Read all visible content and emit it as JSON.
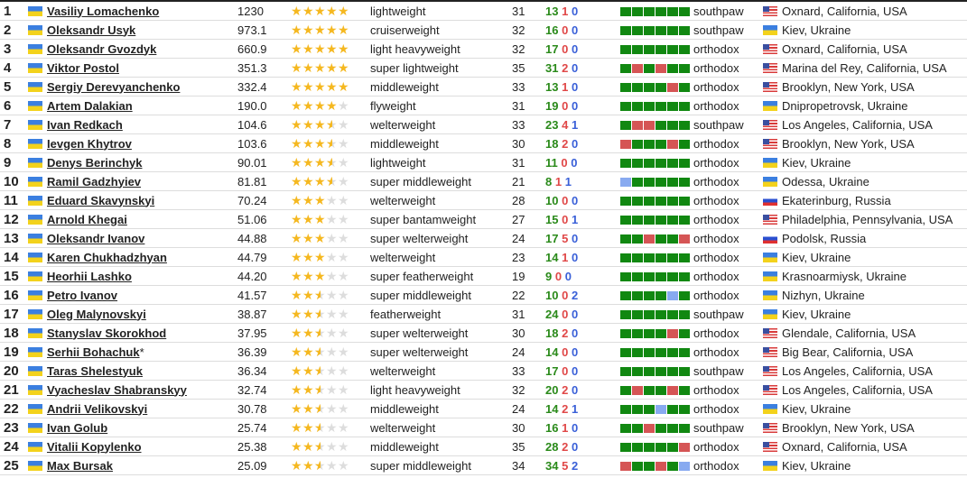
{
  "colors": {
    "win": "#118811",
    "loss": "#d55555",
    "draw": "#88aaf0",
    "star": "#f5b820"
  },
  "rows": [
    {
      "rank": "1",
      "flag": "ua",
      "name": "Vasiliy Lomachenko",
      "points": "1230",
      "rating": 5,
      "division": "lightweight",
      "age": "31",
      "w": "13",
      "l": "1",
      "d": "0",
      "last6": "WWWWWW",
      "stance": "southpaw",
      "res_flag": "us",
      "residence": "Oxnard, California, USA"
    },
    {
      "rank": "2",
      "flag": "ua",
      "name": "Oleksandr Usyk",
      "points": "973.1",
      "rating": 5,
      "division": "cruiserweight",
      "age": "32",
      "w": "16",
      "l": "0",
      "d": "0",
      "last6": "WWWWWW",
      "stance": "southpaw",
      "res_flag": "ua",
      "residence": "Kiev, Ukraine"
    },
    {
      "rank": "3",
      "flag": "ua",
      "name": "Oleksandr Gvozdyk",
      "points": "660.9",
      "rating": 5,
      "division": "light heavyweight",
      "age": "32",
      "w": "17",
      "l": "0",
      "d": "0",
      "last6": "WWWWWW",
      "stance": "orthodox",
      "res_flag": "us",
      "residence": "Oxnard, California, USA"
    },
    {
      "rank": "4",
      "flag": "ua",
      "name": "Viktor Postol",
      "points": "351.3",
      "rating": 5,
      "division": "super lightweight",
      "age": "35",
      "w": "31",
      "l": "2",
      "d": "0",
      "last6": "WLWLWW",
      "stance": "orthodox",
      "res_flag": "us",
      "residence": "Marina del Rey, California, USA"
    },
    {
      "rank": "5",
      "flag": "ua",
      "name": "Sergiy Derevyanchenko",
      "points": "332.4",
      "rating": 5,
      "division": "middleweight",
      "age": "33",
      "w": "13",
      "l": "1",
      "d": "0",
      "last6": "WWWWLW",
      "stance": "orthodox",
      "res_flag": "us",
      "residence": "Brooklyn, New York, USA"
    },
    {
      "rank": "6",
      "flag": "ua",
      "name": "Artem Dalakian",
      "points": "190.0",
      "rating": 4,
      "division": "flyweight",
      "age": "31",
      "w": "19",
      "l": "0",
      "d": "0",
      "last6": "WWWWWW",
      "stance": "orthodox",
      "res_flag": "ua",
      "residence": "Dnipropetrovsk, Ukraine"
    },
    {
      "rank": "7",
      "flag": "ua",
      "name": "Ivan Redkach",
      "points": "104.6",
      "rating": 3.5,
      "division": "welterweight",
      "age": "33",
      "w": "23",
      "l": "4",
      "d": "1",
      "last6": "WLLWWW",
      "stance": "southpaw",
      "res_flag": "us",
      "residence": "Los Angeles, California, USA"
    },
    {
      "rank": "8",
      "flag": "ua",
      "name": "Ievgen Khytrov",
      "points": "103.6",
      "rating": 3.5,
      "division": "middleweight",
      "age": "30",
      "w": "18",
      "l": "2",
      "d": "0",
      "last6": "LWWWLW",
      "stance": "orthodox",
      "res_flag": "us",
      "residence": "Brooklyn, New York, USA"
    },
    {
      "rank": "9",
      "flag": "ua",
      "name": "Denys Berinchyk",
      "points": "90.01",
      "rating": 3.5,
      "division": "lightweight",
      "age": "31",
      "w": "11",
      "l": "0",
      "d": "0",
      "last6": "WWWWWW",
      "stance": "orthodox",
      "res_flag": "ua",
      "residence": "Kiev, Ukraine"
    },
    {
      "rank": "10",
      "flag": "ua",
      "name": "Ramil Gadzhyiev",
      "points": "81.81",
      "rating": 3.5,
      "division": "super middleweight",
      "age": "21",
      "w": "8",
      "l": "1",
      "d": "1",
      "last6": "DWWWWW",
      "stance": "orthodox",
      "res_flag": "ua",
      "residence": "Odessa, Ukraine"
    },
    {
      "rank": "11",
      "flag": "ua",
      "name": "Eduard Skavynskyi",
      "points": "70.24",
      "rating": 3,
      "division": "welterweight",
      "age": "28",
      "w": "10",
      "l": "0",
      "d": "0",
      "last6": "WWWWWW",
      "stance": "orthodox",
      "res_flag": "ru",
      "residence": "Ekaterinburg, Russia"
    },
    {
      "rank": "12",
      "flag": "ua",
      "name": "Arnold Khegai",
      "points": "51.06",
      "rating": 3,
      "division": "super bantamweight",
      "age": "27",
      "w": "15",
      "l": "0",
      "d": "1",
      "last6": "WWWWWW",
      "stance": "orthodox",
      "res_flag": "us",
      "residence": "Philadelphia, Pennsylvania, USA"
    },
    {
      "rank": "13",
      "flag": "ua",
      "name": "Oleksandr Ivanov",
      "points": "44.88",
      "rating": 3,
      "division": "super welterweight",
      "age": "24",
      "w": "17",
      "l": "5",
      "d": "0",
      "last6": "WWLWWL",
      "stance": "orthodox",
      "res_flag": "ru",
      "residence": "Podolsk, Russia"
    },
    {
      "rank": "14",
      "flag": "ua",
      "name": "Karen Chukhadzhyan",
      "points": "44.79",
      "rating": 3,
      "division": "welterweight",
      "age": "23",
      "w": "14",
      "l": "1",
      "d": "0",
      "last6": "WWWWWW",
      "stance": "orthodox",
      "res_flag": "ua",
      "residence": "Kiev, Ukraine"
    },
    {
      "rank": "15",
      "flag": "ua",
      "name": "Heorhii Lashko",
      "points": "44.20",
      "rating": 3,
      "division": "super featherweight",
      "age": "19",
      "w": "9",
      "l": "0",
      "d": "0",
      "last6": "WWWWWW",
      "stance": "orthodox",
      "res_flag": "ua",
      "residence": "Krasnoarmiysk, Ukraine"
    },
    {
      "rank": "16",
      "flag": "ua",
      "name": "Petro Ivanov",
      "points": "41.57",
      "rating": 2.5,
      "division": "super middleweight",
      "age": "22",
      "w": "10",
      "l": "0",
      "d": "2",
      "last6": "WWWWDW",
      "stance": "orthodox",
      "res_flag": "ua",
      "residence": "Nizhyn, Ukraine"
    },
    {
      "rank": "17",
      "flag": "ua",
      "name": "Oleg Malynovskyi",
      "points": "38.87",
      "rating": 2.5,
      "division": "featherweight",
      "age": "31",
      "w": "24",
      "l": "0",
      "d": "0",
      "last6": "WWWWWW",
      "stance": "southpaw",
      "res_flag": "ua",
      "residence": "Kiev, Ukraine"
    },
    {
      "rank": "18",
      "flag": "ua",
      "name": "Stanyslav Skorokhod",
      "points": "37.95",
      "rating": 2.5,
      "division": "super welterweight",
      "age": "30",
      "w": "18",
      "l": "2",
      "d": "0",
      "last6": "WWWWLW",
      "stance": "orthodox",
      "res_flag": "us",
      "residence": "Glendale, California, USA"
    },
    {
      "rank": "19",
      "flag": "ua",
      "name": "Serhii Bohachuk",
      "name_suffix": "*",
      "points": "36.39",
      "rating": 2.5,
      "division": "super welterweight",
      "age": "24",
      "w": "14",
      "l": "0",
      "d": "0",
      "last6": "WWWWWW",
      "stance": "orthodox",
      "res_flag": "us",
      "residence": "Big Bear, California, USA"
    },
    {
      "rank": "20",
      "flag": "ua",
      "name": "Taras Shelestyuk",
      "points": "36.34",
      "rating": 2.5,
      "division": "welterweight",
      "age": "33",
      "w": "17",
      "l": "0",
      "d": "0",
      "last6": "WWWWWW",
      "stance": "southpaw",
      "res_flag": "us",
      "residence": "Los Angeles, California, USA"
    },
    {
      "rank": "21",
      "flag": "ua",
      "name": "Vyacheslav Shabranskyy",
      "points": "32.74",
      "rating": 2.5,
      "division": "light heavyweight",
      "age": "32",
      "w": "20",
      "l": "2",
      "d": "0",
      "last6": "WLWWLW",
      "stance": "orthodox",
      "res_flag": "us",
      "residence": "Los Angeles, California, USA"
    },
    {
      "rank": "22",
      "flag": "ua",
      "name": "Andrii Velikovskyi",
      "points": "30.78",
      "rating": 2.5,
      "division": "middleweight",
      "age": "24",
      "w": "14",
      "l": "2",
      "d": "1",
      "last6": "WWWDWW",
      "stance": "orthodox",
      "res_flag": "ua",
      "residence": "Kiev, Ukraine"
    },
    {
      "rank": "23",
      "flag": "ua",
      "name": "Ivan Golub",
      "points": "25.74",
      "rating": 2.5,
      "division": "welterweight",
      "age": "30",
      "w": "16",
      "l": "1",
      "d": "0",
      "last6": "WWLWWW",
      "stance": "southpaw",
      "res_flag": "us",
      "residence": "Brooklyn, New York, USA"
    },
    {
      "rank": "24",
      "flag": "ua",
      "name": "Vitalii Kopylenko",
      "points": "25.38",
      "rating": 2.5,
      "division": "middleweight",
      "age": "35",
      "w": "28",
      "l": "2",
      "d": "0",
      "last6": "WWWWWL",
      "stance": "orthodox",
      "res_flag": "us",
      "residence": "Oxnard, California, USA"
    },
    {
      "rank": "25",
      "flag": "ua",
      "name": "Max Bursak",
      "points": "25.09",
      "rating": 2.5,
      "division": "super middleweight",
      "age": "34",
      "w": "34",
      "l": "5",
      "d": "2",
      "last6": "LWWLWD",
      "stance": "orthodox",
      "res_flag": "ua",
      "residence": "Kiev, Ukraine"
    }
  ]
}
